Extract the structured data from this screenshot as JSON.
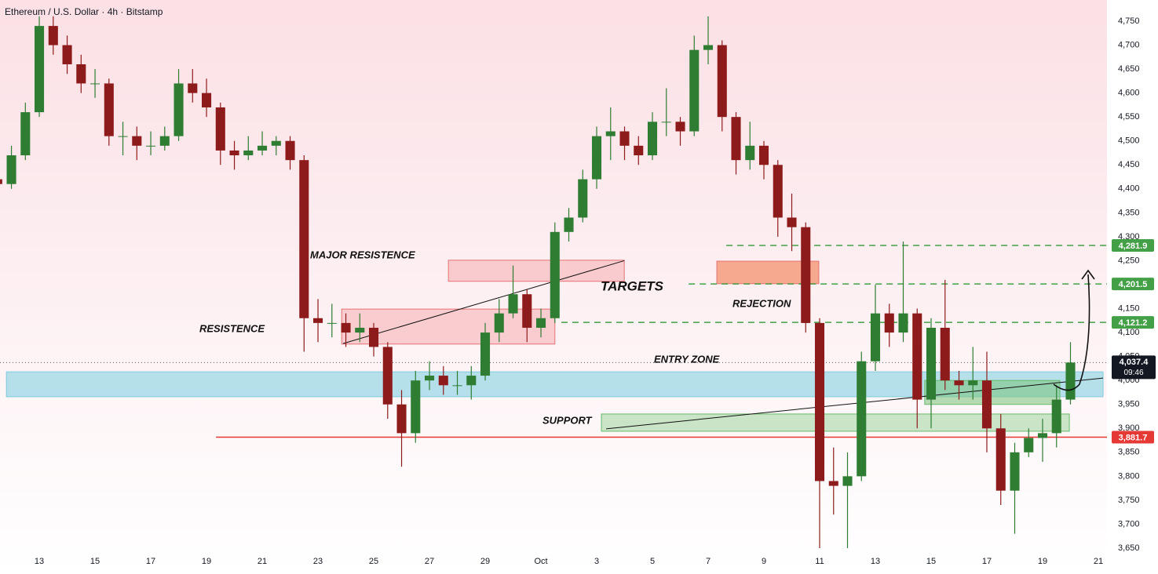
{
  "chart_data": {
    "type": "candlestick",
    "title": "Ethereum / U.S. Dollar · 4h · Bitstamp",
    "xlim": [
      -1.41,
      38.31
    ],
    "xticks": [
      {
        "value": 0,
        "label": "13"
      },
      {
        "value": 2,
        "label": "15"
      },
      {
        "value": 4,
        "label": "17"
      },
      {
        "value": 6,
        "label": "19"
      },
      {
        "value": 8,
        "label": "21"
      },
      {
        "value": 10,
        "label": "23"
      },
      {
        "value": 12,
        "label": "25"
      },
      {
        "value": 14,
        "label": "27"
      },
      {
        "value": 16,
        "label": "29"
      },
      {
        "value": 18,
        "label": "Oct"
      },
      {
        "value": 20,
        "label": "3"
      },
      {
        "value": 22,
        "label": "5"
      },
      {
        "value": 24,
        "label": "7"
      },
      {
        "value": 26,
        "label": "9"
      },
      {
        "value": 28,
        "label": "11"
      },
      {
        "value": 30,
        "label": "13"
      },
      {
        "value": 32,
        "label": "15"
      },
      {
        "value": 34,
        "label": "17"
      },
      {
        "value": 36,
        "label": "19"
      },
      {
        "value": 38,
        "label": "21"
      }
    ],
    "ylim": [
      3650,
      4750
    ],
    "yticks": [
      {
        "value": 3650,
        "label": "3,650"
      },
      {
        "value": 3700,
        "label": "3,700"
      },
      {
        "value": 3750,
        "label": "3,750"
      },
      {
        "value": 3800,
        "label": "3,800"
      },
      {
        "value": 3850,
        "label": "3,850"
      },
      {
        "value": 3900,
        "label": "3,900"
      },
      {
        "value": 3950,
        "label": "3,950"
      },
      {
        "value": 4000,
        "label": "4,000"
      },
      {
        "value": 4050,
        "label": "4,050"
      },
      {
        "value": 4100,
        "label": "4,100"
      },
      {
        "value": 4150,
        "label": "4,150"
      },
      {
        "value": 4200,
        "label": "4,200"
      },
      {
        "value": 4250,
        "label": "4,250"
      },
      {
        "value": 4300,
        "label": "4,300"
      },
      {
        "value": 4350,
        "label": "4,350"
      },
      {
        "value": 4400,
        "label": "4,400"
      },
      {
        "value": 4450,
        "label": "4,450"
      },
      {
        "value": 4500,
        "label": "4,500"
      },
      {
        "value": 4550,
        "label": "4,550"
      },
      {
        "value": 4600,
        "label": "4,600"
      },
      {
        "value": 4650,
        "label": "4,650"
      },
      {
        "value": 4700,
        "label": "4,700"
      },
      {
        "value": 4750,
        "label": "4,750"
      }
    ],
    "grid": false,
    "up_color": "#2e7d32",
    "down_color": "#8e1b1b",
    "candles": {
      "x": [
        -1.5,
        -1,
        -0.5,
        0,
        0.5,
        1,
        1.5,
        2,
        2.5,
        3,
        3.5,
        4,
        4.5,
        5,
        5.5,
        6,
        6.5,
        7,
        7.5,
        8,
        8.5,
        9,
        9.5,
        10,
        10.5,
        11,
        11.5,
        12,
        12.5,
        13,
        13.5,
        14,
        14.5,
        15,
        15.5,
        16,
        16.5,
        17,
        17.5,
        18,
        18.5,
        19,
        19.5,
        20,
        20.5,
        21,
        21.5,
        22,
        22.5,
        23,
        23.5,
        24,
        24.5,
        25,
        25.5,
        26,
        26.5,
        27,
        27.5,
        28,
        28.5,
        29,
        29.5,
        30,
        30.5,
        31,
        31.5,
        32,
        32.5,
        33,
        33.5,
        34,
        34.5,
        35,
        35.5,
        36,
        36.5,
        37
      ],
      "open": [
        4420,
        4410,
        4470,
        4560,
        4740,
        4700,
        4660,
        4620,
        4620,
        4510,
        4510,
        4490,
        4490,
        4510,
        4620,
        4600,
        4570,
        4480,
        4470,
        4480,
        4490,
        4500,
        4460,
        4130,
        4120,
        4120,
        4100,
        4110,
        4070,
        3950,
        3890,
        4000,
        4010,
        3990,
        3990,
        4010,
        4100,
        4140,
        4180,
        4110,
        4130,
        4310,
        4340,
        4420,
        4510,
        4520,
        4490,
        4470,
        4540,
        4540,
        4520,
        4690,
        4700,
        4550,
        4460,
        4490,
        4450,
        4340,
        4320,
        4120,
        3790,
        3780,
        3800,
        4040,
        4140,
        4100,
        4140,
        3960,
        4110,
        4000,
        3990,
        4000,
        3900,
        3770,
        3850,
        3880,
        3890,
        3960
      ],
      "high": [
        4440,
        4490,
        4580,
        4760,
        4760,
        4720,
        4680,
        4650,
        4630,
        4540,
        4530,
        4520,
        4530,
        4650,
        4650,
        4630,
        4580,
        4500,
        4510,
        4520,
        4510,
        4510,
        4470,
        4170,
        4160,
        4140,
        4140,
        4120,
        4080,
        3980,
        4020,
        4040,
        4030,
        4020,
        4030,
        4120,
        4170,
        4240,
        4190,
        4150,
        4330,
        4360,
        4440,
        4530,
        4570,
        4530,
        4510,
        4560,
        4610,
        4550,
        4720,
        4760,
        4710,
        4560,
        4540,
        4500,
        4460,
        4390,
        4330,
        4130,
        3860,
        3850,
        4060,
        4200,
        4160,
        4290,
        4150,
        4130,
        4210,
        4020,
        4070,
        4060,
        3930,
        3870,
        3900,
        3920,
        3990,
        4080
      ],
      "low": [
        4400,
        4400,
        4460,
        4550,
        4680,
        4640,
        4600,
        4590,
        4490,
        4470,
        4460,
        4470,
        4480,
        4500,
        4580,
        4550,
        4450,
        4440,
        4460,
        4470,
        4470,
        4440,
        4060,
        4080,
        4090,
        4070,
        4080,
        4050,
        3920,
        3820,
        3870,
        3980,
        3970,
        3970,
        3960,
        4000,
        4080,
        4130,
        4080,
        4090,
        4120,
        4290,
        4330,
        4400,
        4460,
        4460,
        4450,
        4460,
        4510,
        4490,
        4510,
        4660,
        4520,
        4430,
        4440,
        4420,
        4300,
        4270,
        4100,
        3650,
        3720,
        3650,
        3790,
        4020,
        4070,
        4080,
        3900,
        3900,
        3980,
        3960,
        3960,
        3850,
        3740,
        3680,
        3840,
        3830,
        3860,
        3950
      ],
      "close": [
        4410,
        4470,
        4560,
        4740,
        4700,
        4660,
        4620,
        4620,
        4510,
        4510,
        4490,
        4490,
        4510,
        4620,
        4600,
        4570,
        4480,
        4470,
        4480,
        4490,
        4500,
        4460,
        4130,
        4120,
        4120,
        4100,
        4110,
        4070,
        3950,
        3890,
        4000,
        4010,
        3990,
        3990,
        4010,
        4100,
        4140,
        4180,
        4110,
        4130,
        4310,
        4340,
        4420,
        4510,
        4520,
        4490,
        4470,
        4540,
        4540,
        4520,
        4690,
        4700,
        4550,
        4460,
        4490,
        4450,
        4340,
        4320,
        4120,
        3790,
        3780,
        3800,
        4040,
        4140,
        4100,
        4140,
        3960,
        4110,
        4000,
        3990,
        4000,
        3900,
        3770,
        3850,
        3880,
        3890,
        3960,
        4037.4
      ]
    },
    "zones": [
      {
        "x": [
          -1.18,
          38.17
        ],
        "y": [
          3966,
          4018
        ],
        "color": "rgba(150,215,230,0.7)",
        "edge": "rgba(120,200,220,0.9)"
      },
      {
        "x": [
          10.85,
          18.5
        ],
        "y": [
          4076,
          4149
        ],
        "color": "rgba(245,160,165,0.45)",
        "edge": "#e57373"
      },
      {
        "x": [
          14.68,
          20.99
        ],
        "y": [
          4207,
          4251
        ],
        "color": "rgba(245,160,165,0.45)",
        "edge": "#e57373"
      },
      {
        "x": [
          24.31,
          27.97
        ],
        "y": [
          4202,
          4249
        ],
        "color": "rgba(242,140,100,0.7)",
        "edge": "#e57373"
      },
      {
        "x": [
          31.77,
          36.62
        ],
        "y": [
          3950,
          4000
        ],
        "color": "rgba(120,195,120,0.55)",
        "edge": "#66bb6a"
      },
      {
        "x": [
          20.17,
          36.96
        ],
        "y": [
          3894,
          3930
        ],
        "color": "rgba(140,205,140,0.45)",
        "edge": "#66bb6a"
      }
    ],
    "trendlines": [
      {
        "x": [
          10.9,
          20.99
        ],
        "y": [
          4077,
          4250
        ]
      },
      {
        "x": [
          20.34,
          38.17
        ],
        "y": [
          3899,
          4005
        ]
      }
    ],
    "levels": [
      {
        "price": {
          "value": 4281.9,
          "label": "4,281.9"
        },
        "from": 24.65,
        "color": "#43a047",
        "dash": true
      },
      {
        "price": {
          "value": 4201.5,
          "label": "4,201.5"
        },
        "from": 23.3,
        "color": "#43a047",
        "dash": true
      },
      {
        "price": {
          "value": 4121.2,
          "label": "4,121.2"
        },
        "from": 18.73,
        "color": "#43a047",
        "dash": true
      },
      {
        "price": {
          "value": 3881.7,
          "label": "3,881.7"
        },
        "from": 6.34,
        "color": "#e53935",
        "dash": false
      }
    ],
    "last_price": {
      "value": 4037.4,
      "label": "4,037.4"
    },
    "countdown": "09:46",
    "annotations": [
      "MAJOR RESISTENCE",
      "RESISTENCE",
      "TARGETS",
      "REJECTION",
      "ENTRY ZONE",
      "SUPPORT"
    ]
  }
}
